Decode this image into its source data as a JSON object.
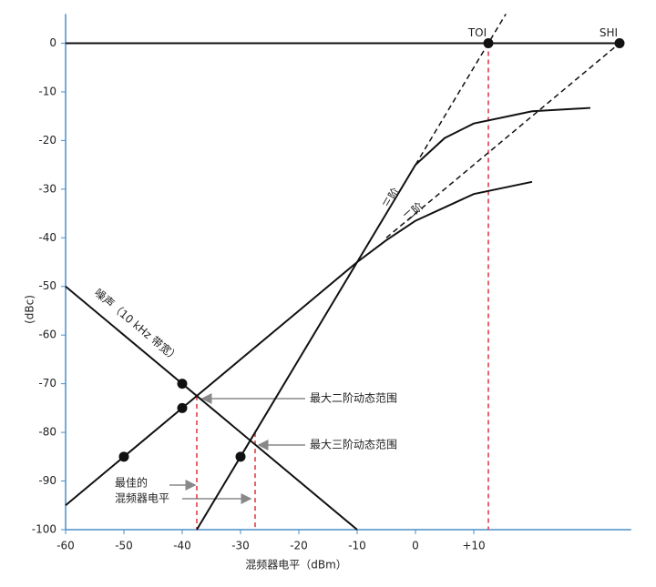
{
  "chart_data": {
    "type": "line",
    "x_label": "混频器电平（dBm）",
    "y_label": "(dBc)",
    "xlim": [
      -60,
      37
    ],
    "ylim": [
      -100,
      6
    ],
    "xticks": [
      -60,
      -50,
      -40,
      -30,
      -20,
      -10,
      0,
      {
        "value": 10,
        "label": "+10"
      }
    ],
    "yticks": [
      0,
      -10,
      -20,
      -30,
      -40,
      -50,
      -60,
      -70,
      -80,
      -90,
      -100
    ],
    "series": [
      {
        "x": [
          -60,
          35
        ],
        "values": [
          0,
          0
        ],
        "color": "#111111",
        "dash": false
      },
      {
        "name": "噪声（10 kHz 带宽）",
        "x": [
          -60,
          -10
        ],
        "values": [
          -50,
          -100
        ],
        "color": "#111111",
        "dash": false
      },
      {
        "name": "二阶",
        "x": [
          -60,
          -50,
          -40,
          -30,
          -20,
          -10,
          -5,
          0,
          10,
          20
        ],
        "values": [
          -95,
          -85,
          -75,
          -65,
          -55,
          -45,
          -40.5,
          -36.5,
          -31,
          -28.5
        ],
        "color": "#111111",
        "dash": false
      },
      {
        "name": "三阶",
        "x": [
          -37.5,
          -30,
          -20,
          -10,
          0,
          5,
          10,
          20,
          30
        ],
        "values": [
          -100,
          -85,
          -65,
          -45,
          -25,
          -19.5,
          -16.5,
          -14,
          -13.3
        ],
        "color": "#111111",
        "dash": false
      },
      {
        "x": [
          0,
          15.5
        ],
        "values": [
          -25,
          6
        ],
        "color": "#111111",
        "dash": true
      },
      {
        "x": [
          -5,
          35
        ],
        "values": [
          -40,
          0
        ],
        "color": "#111111",
        "dash": true
      }
    ],
    "points": [
      {
        "x": -50,
        "y": -85
      },
      {
        "x": -40,
        "y": -75
      },
      {
        "x": -40,
        "y": -70
      },
      {
        "x": -30,
        "y": -85
      },
      {
        "x": 12.5,
        "y": 0,
        "label": "TOI"
      },
      {
        "x": 35,
        "y": 0,
        "label": "SHI"
      }
    ],
    "vlines": [
      {
        "x": -37.5,
        "from": -72.5,
        "to": -100
      },
      {
        "x": -27.5,
        "from": -80,
        "to": -100
      },
      {
        "x": 12.5,
        "from": 0,
        "to": -100
      }
    ],
    "vline_color": "#e0303a",
    "annotations": {
      "second_order_range": "最大二阶动态范围",
      "third_order_range": "最大三阶动态范围",
      "best_level": [
        "最佳的",
        "混频器电平"
      ]
    }
  }
}
